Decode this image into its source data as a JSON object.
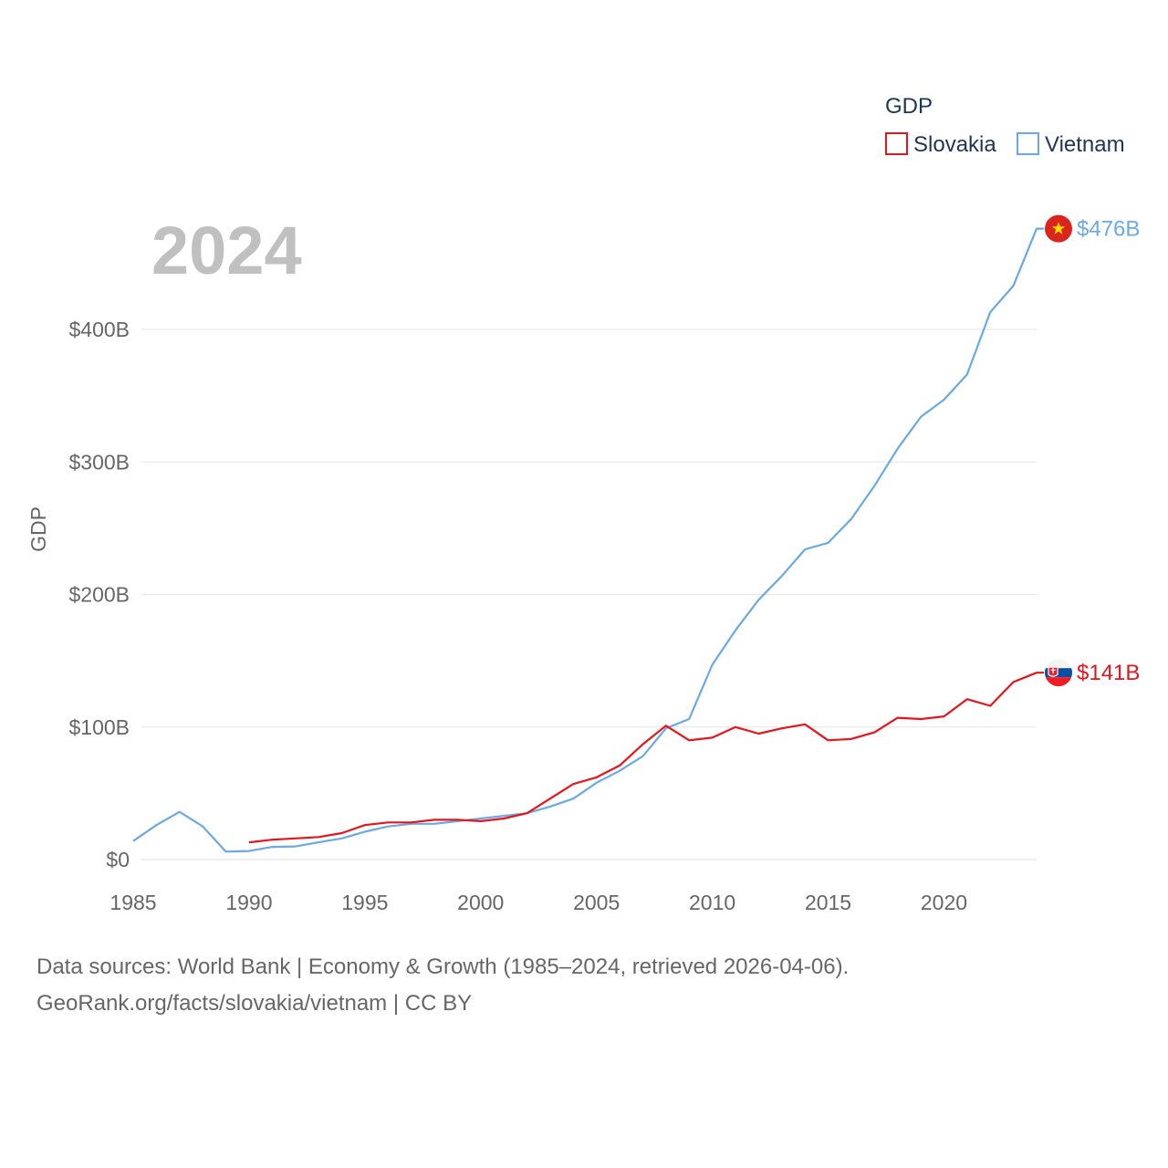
{
  "chart_data": {
    "type": "line",
    "title": "GDP",
    "ylabel": "GDP",
    "year_label": "2024",
    "x_ticks": [
      1985,
      1990,
      1995,
      2000,
      2005,
      2010,
      2015,
      2020
    ],
    "y_ticks": [
      {
        "value": 0,
        "label": "$0"
      },
      {
        "value": 100,
        "label": "$100B"
      },
      {
        "value": 200,
        "label": "$200B"
      },
      {
        "value": 300,
        "label": "$300B"
      },
      {
        "value": 400,
        "label": "$400B"
      }
    ],
    "xlim": [
      1985,
      2024
    ],
    "ylim": [
      0,
      476
    ],
    "unit": "billions USD",
    "series": [
      {
        "name": "Slovakia",
        "color": "#e8141b",
        "end_label": "$141B",
        "flag": "slovakia-flag",
        "x": [
          1990,
          1991,
          1992,
          1993,
          1994,
          1995,
          1996,
          1997,
          1998,
          1999,
          2000,
          2001,
          2002,
          2003,
          2004,
          2005,
          2006,
          2007,
          2008,
          2009,
          2010,
          2011,
          2012,
          2013,
          2014,
          2015,
          2016,
          2017,
          2018,
          2019,
          2020,
          2021,
          2022,
          2023,
          2024
        ],
        "values": [
          13,
          15,
          16,
          17,
          20,
          26,
          28,
          28,
          30,
          30,
          29,
          31,
          35,
          46,
          57,
          62,
          71,
          87,
          101,
          90,
          92,
          100,
          95,
          99,
          102,
          90,
          91,
          96,
          107,
          106,
          108,
          121,
          116,
          134,
          141
        ]
      },
      {
        "name": "Vietnam",
        "color": "#6aaae4",
        "end_label": "$476B",
        "flag": "vietnam-flag",
        "x": [
          1985,
          1986,
          1987,
          1988,
          1989,
          1990,
          1991,
          1992,
          1993,
          1994,
          1995,
          1996,
          1997,
          1998,
          1999,
          2000,
          2001,
          2002,
          2003,
          2004,
          2005,
          2006,
          2007,
          2008,
          2009,
          2010,
          2011,
          2012,
          2013,
          2014,
          2015,
          2016,
          2017,
          2018,
          2019,
          2020,
          2021,
          2022,
          2023,
          2024
        ],
        "values": [
          14,
          26,
          36,
          25,
          6,
          6.5,
          9.6,
          9.9,
          13,
          16,
          21,
          25,
          27,
          27,
          29,
          31,
          33,
          35,
          40,
          46,
          58,
          67,
          78,
          99,
          106,
          147,
          173,
          196,
          214,
          234,
          239,
          257,
          282,
          310,
          334,
          347,
          366,
          413,
          433,
          476
        ]
      }
    ]
  },
  "footer": {
    "line1": "Data sources: World Bank | Economy & Growth (1985–2024, retrieved 2026-04-06).",
    "line2": "GeoRank.org/facts/slovakia/vietnam | CC BY"
  }
}
